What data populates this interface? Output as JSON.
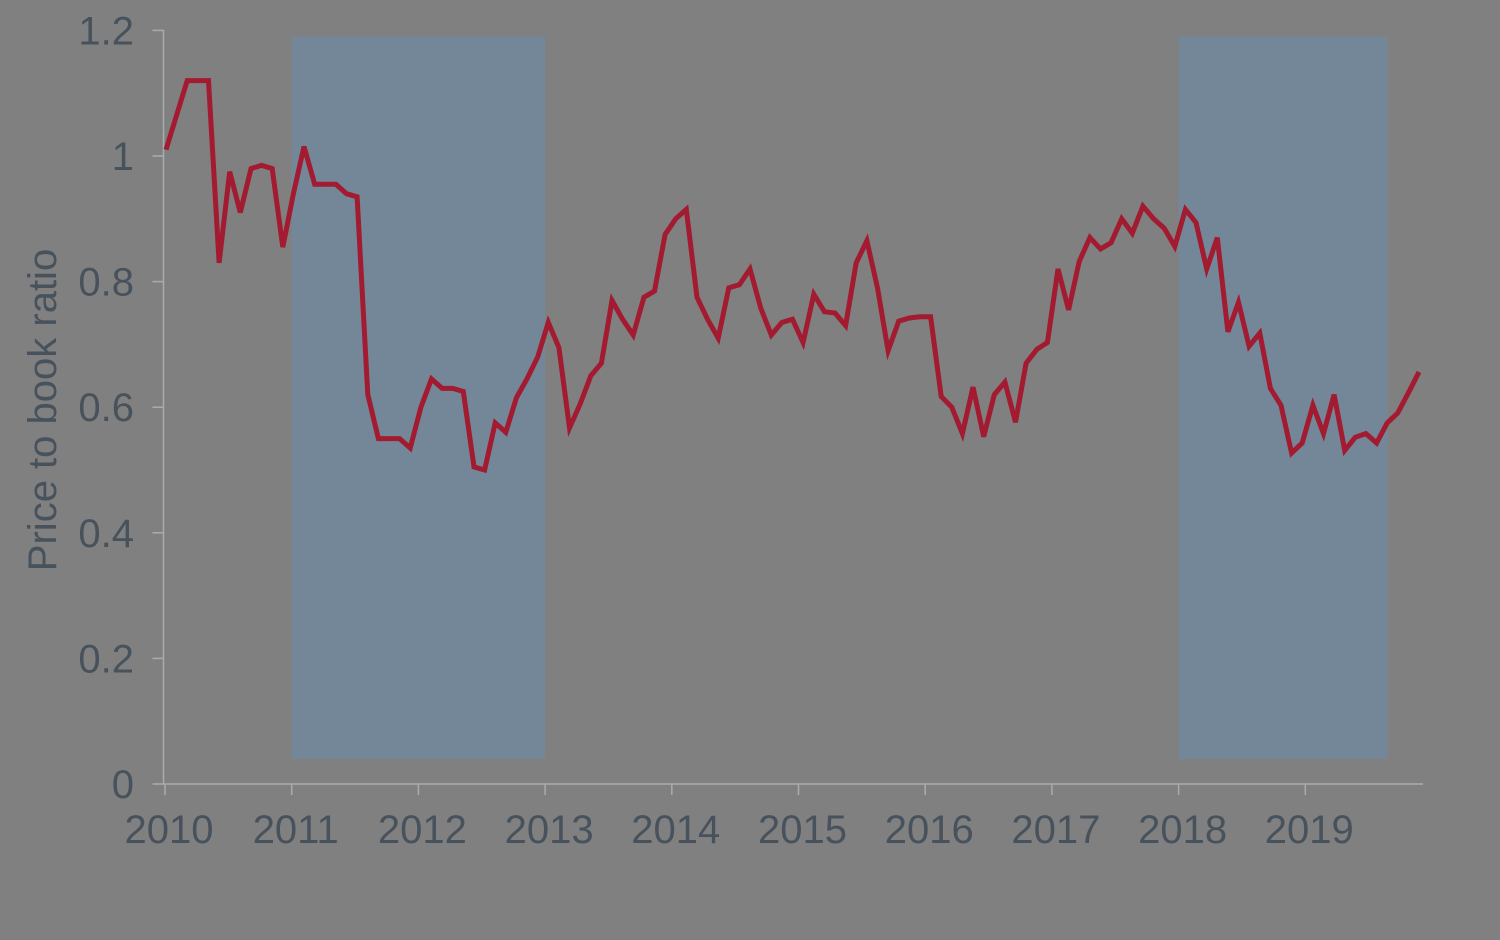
{
  "chart_data": {
    "type": "line",
    "title": "",
    "xlabel": "",
    "ylabel": "Price to book ratio",
    "x_start": "2010-01",
    "x_frequency": "monthly",
    "x_tick_labels": [
      "2010",
      "2011",
      "2012",
      "2013",
      "2014",
      "2015",
      "2016",
      "2017",
      "2018",
      "2019"
    ],
    "y_tick_labels": [
      "0",
      "0.2",
      "0.4",
      "0.6",
      "0.8",
      "1",
      "1.2"
    ],
    "y_ticks": [
      0,
      0.2,
      0.4,
      0.6,
      0.8,
      1,
      1.2
    ],
    "ylim": [
      0,
      1.2
    ],
    "xlim": [
      2010,
      2019.95
    ],
    "grid": false,
    "legend": "none",
    "series": [
      {
        "name": "Price to book ratio",
        "color": "#A21B30",
        "values": [
          1.01,
          1.065,
          1.12,
          1.12,
          1.12,
          0.83,
          0.975,
          0.91,
          0.98,
          0.985,
          0.98,
          0.855,
          0.94,
          1.015,
          0.955,
          0.955,
          0.955,
          0.94,
          0.935,
          0.62,
          0.55,
          0.55,
          0.55,
          0.535,
          0.6,
          0.645,
          0.63,
          0.63,
          0.625,
          0.505,
          0.5,
          0.575,
          0.56,
          0.615,
          0.645,
          0.68,
          0.735,
          0.695,
          0.567,
          0.605,
          0.65,
          0.67,
          0.77,
          0.74,
          0.715,
          0.775,
          0.785,
          0.875,
          0.9,
          0.915,
          0.775,
          0.74,
          0.71,
          0.79,
          0.795,
          0.82,
          0.758,
          0.715,
          0.735,
          0.74,
          0.703,
          0.78,
          0.752,
          0.75,
          0.73,
          0.83,
          0.865,
          0.79,
          0.69,
          0.737,
          0.742,
          0.744,
          0.744,
          0.617,
          0.6,
          0.558,
          0.632,
          0.553,
          0.62,
          0.64,
          0.576,
          0.67,
          0.692,
          0.703,
          0.82,
          0.755,
          0.832,
          0.87,
          0.852,
          0.862,
          0.9,
          0.877,
          0.92,
          0.9,
          0.885,
          0.856,
          0.915,
          0.894,
          0.82,
          0.87,
          0.72,
          0.767,
          0.697,
          0.718,
          0.63,
          0.603,
          0.527,
          0.543,
          0.603,
          0.558,
          0.62,
          0.531,
          0.552,
          0.558,
          0.543,
          0.575,
          0.591,
          0.623,
          0.656
        ]
      }
    ],
    "shaded_regions": [
      {
        "x_from": 2011.0,
        "x_to": 2013.0,
        "y_from": 0.04,
        "y_to": 1.19,
        "color": "#748799"
      },
      {
        "x_from": 2018.0,
        "x_to": 2019.65,
        "y_from": 0.04,
        "y_to": 1.19,
        "color": "#748799"
      }
    ],
    "background_color": "#808080",
    "axis_color": "#A9ACAE",
    "text_color": "#47525C",
    "line_width": 5
  }
}
